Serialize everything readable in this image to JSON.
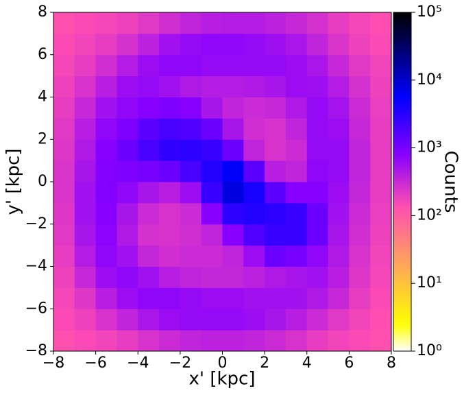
{
  "chart_data": {
    "type": "heatmap",
    "xlabel": "x' [kpc]",
    "ylabel": "y' [kpc]",
    "colorbar_label": "Counts",
    "colormap": "gnuplot2_r",
    "x_bins": [
      -8,
      -7,
      -6,
      -5,
      -4,
      -3,
      -2,
      -1,
      0,
      1,
      2,
      3,
      4,
      5,
      6,
      7,
      8
    ],
    "y_bins": [
      -8,
      -7,
      -6,
      -5,
      -4,
      -3,
      -2,
      -1,
      0,
      1,
      2,
      3,
      4,
      5,
      6,
      7,
      8
    ],
    "values": [
      [
        130,
        150,
        170,
        200,
        250,
        300,
        350,
        380,
        380,
        350,
        300,
        250,
        200,
        170,
        150,
        130
      ],
      [
        150,
        180,
        250,
        350,
        480,
        600,
        650,
        650,
        650,
        600,
        500,
        400,
        300,
        220,
        170,
        140
      ],
      [
        160,
        230,
        400,
        600,
        700,
        700,
        650,
        600,
        600,
        550,
        550,
        550,
        450,
        320,
        200,
        150
      ],
      [
        180,
        320,
        600,
        700,
        550,
        400,
        350,
        330,
        330,
        380,
        450,
        500,
        550,
        400,
        230,
        160
      ],
      [
        200,
        420,
        700,
        550,
        330,
        280,
        300,
        300,
        350,
        600,
        1200,
        1000,
        700,
        450,
        250,
        170
      ],
      [
        220,
        500,
        750,
        450,
        260,
        250,
        280,
        350,
        800,
        1800,
        2500,
        2500,
        1200,
        500,
        280,
        180
      ],
      [
        230,
        550,
        800,
        500,
        300,
        250,
        300,
        800,
        3000,
        3500,
        3000,
        2500,
        1200,
        550,
        300,
        190
      ],
      [
        240,
        550,
        850,
        700,
        500,
        400,
        600,
        2500,
        8000,
        4000,
        1500,
        800,
        800,
        600,
        330,
        200
      ],
      [
        240,
        500,
        850,
        900,
        1000,
        1200,
        2000,
        3500,
        6000,
        1500,
        400,
        350,
        700,
        650,
        350,
        200
      ],
      [
        230,
        450,
        800,
        1200,
        2000,
        2800,
        3000,
        2500,
        1200,
        350,
        250,
        300,
        650,
        650,
        350,
        200
      ],
      [
        220,
        400,
        700,
        900,
        1500,
        2000,
        1800,
        1200,
        500,
        280,
        250,
        350,
        650,
        600,
        320,
        200
      ],
      [
        200,
        320,
        550,
        700,
        800,
        900,
        800,
        500,
        350,
        300,
        320,
        450,
        650,
        520,
        300,
        190
      ],
      [
        180,
        250,
        400,
        600,
        650,
        550,
        450,
        420,
        420,
        450,
        500,
        600,
        580,
        420,
        260,
        180
      ],
      [
        160,
        200,
        280,
        420,
        600,
        700,
        700,
        650,
        650,
        650,
        650,
        600,
        480,
        320,
        220,
        170
      ],
      [
        150,
        170,
        200,
        260,
        380,
        550,
        650,
        700,
        700,
        650,
        580,
        480,
        350,
        240,
        180,
        150
      ],
      [
        130,
        150,
        160,
        180,
        220,
        280,
        350,
        400,
        420,
        420,
        380,
        320,
        260,
        200,
        160,
        140
      ]
    ],
    "xlim": [
      -8,
      8
    ],
    "ylim": [
      -8,
      8
    ],
    "xticks": [
      {
        "value": -8,
        "label": "−8"
      },
      {
        "value": -6,
        "label": "−6"
      },
      {
        "value": -4,
        "label": "−4"
      },
      {
        "value": -2,
        "label": "−2"
      },
      0,
      2,
      4,
      6,
      8
    ],
    "yticks": [
      {
        "value": -8,
        "label": "−8"
      },
      {
        "value": -6,
        "label": "−6"
      },
      {
        "value": -4,
        "label": "−4"
      },
      {
        "value": -2,
        "label": "−2"
      },
      0,
      2,
      4,
      6,
      8
    ],
    "clim": [
      1,
      100000
    ],
    "color_scale": "log",
    "cticks": [
      {
        "value": 1,
        "label": "10⁰"
      },
      {
        "value": 10,
        "label": "10¹"
      },
      {
        "value": 100,
        "label": "10²"
      },
      {
        "value": 1000,
        "label": "10³"
      },
      {
        "value": 10000,
        "label": "10⁴"
      },
      {
        "value": 100000,
        "label": "10⁵"
      }
    ]
  }
}
